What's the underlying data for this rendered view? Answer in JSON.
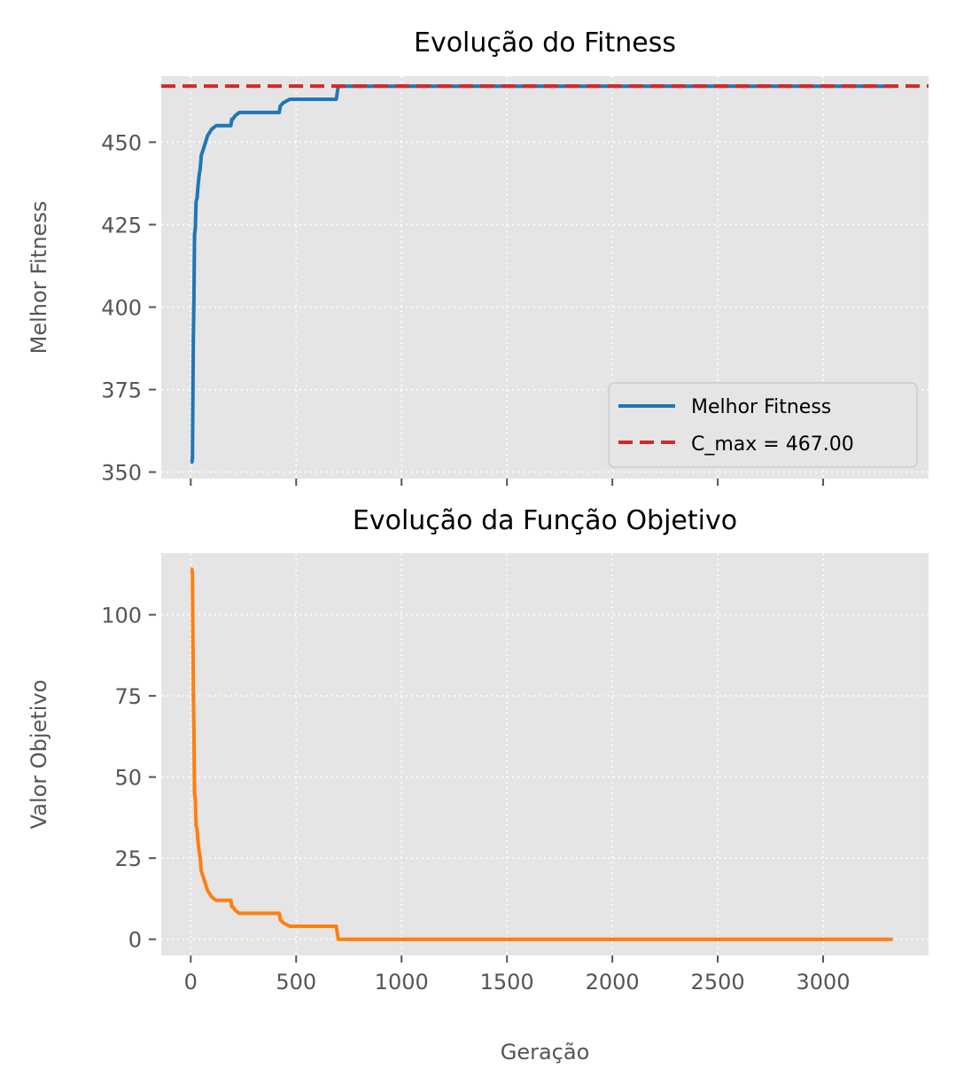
{
  "chart_data": [
    {
      "type": "line",
      "title": "Evolução do Fitness",
      "xlabel": "",
      "ylabel": "Melhor Fitness",
      "xlim": [
        -140,
        3500
      ],
      "ylim": [
        348,
        470
      ],
      "x_ticks": [
        0,
        500,
        1000,
        1500,
        2000,
        2500,
        3000
      ],
      "y_ticks": [
        350,
        375,
        400,
        425,
        450
      ],
      "y_tick_labels": [
        "350",
        "375",
        "400",
        "425",
        "450"
      ],
      "grid": true,
      "legend_position": "lower-right",
      "series": [
        {
          "name": "Melhor Fitness",
          "color": "#1f77b4",
          "style": "solid",
          "points": [
            [
              0,
              353
            ],
            [
              5,
              353
            ],
            [
              8,
              354
            ],
            [
              10,
              372
            ],
            [
              12,
              390
            ],
            [
              15,
              403
            ],
            [
              18,
              422
            ],
            [
              22,
              424
            ],
            [
              25,
              432
            ],
            [
              30,
              433
            ],
            [
              35,
              437
            ],
            [
              40,
              440
            ],
            [
              45,
              442
            ],
            [
              50,
              446
            ],
            [
              55,
              447
            ],
            [
              60,
              448
            ],
            [
              70,
              450
            ],
            [
              80,
              452
            ],
            [
              90,
              453
            ],
            [
              100,
              454
            ],
            [
              120,
              455
            ],
            [
              190,
              455
            ],
            [
              195,
              457
            ],
            [
              200,
              457
            ],
            [
              210,
              458
            ],
            [
              230,
              459
            ],
            [
              420,
              459
            ],
            [
              425,
              461
            ],
            [
              440,
              462
            ],
            [
              470,
              463
            ],
            [
              690,
              463
            ],
            [
              700,
              467
            ],
            [
              3330,
              467
            ]
          ]
        },
        {
          "name": "C_max = 467.00",
          "color": "#d62728",
          "style": "dashed",
          "hline": 467
        }
      ]
    },
    {
      "type": "line",
      "title": "Evolução da Função Objetivo",
      "xlabel": "Geração",
      "ylabel": "Valor Objetivo",
      "xlim": [
        -140,
        3500
      ],
      "ylim": [
        -5,
        119
      ],
      "x_ticks": [
        0,
        500,
        1000,
        1500,
        2000,
        2500,
        3000
      ],
      "x_tick_labels": [
        "0",
        "500",
        "1000",
        "1500",
        "2000",
        "2500",
        "3000"
      ],
      "y_ticks": [
        0,
        25,
        50,
        75,
        100
      ],
      "y_tick_labels": [
        "0",
        "25",
        "50",
        "75",
        "100"
      ],
      "grid": true,
      "series": [
        {
          "name": "",
          "color": "#ff7f0e",
          "style": "solid",
          "points": [
            [
              0,
              114
            ],
            [
              5,
              114
            ],
            [
              8,
              113
            ],
            [
              10,
              95
            ],
            [
              12,
              77
            ],
            [
              15,
              64
            ],
            [
              18,
              45
            ],
            [
              22,
              43
            ],
            [
              25,
              35
            ],
            [
              30,
              34
            ],
            [
              35,
              30
            ],
            [
              40,
              27
            ],
            [
              45,
              25
            ],
            [
              50,
              21
            ],
            [
              55,
              20
            ],
            [
              60,
              19
            ],
            [
              70,
              17
            ],
            [
              80,
              15
            ],
            [
              90,
              14
            ],
            [
              100,
              13
            ],
            [
              120,
              12
            ],
            [
              190,
              12
            ],
            [
              195,
              10
            ],
            [
              200,
              10
            ],
            [
              210,
              9
            ],
            [
              230,
              8
            ],
            [
              420,
              8
            ],
            [
              425,
              6
            ],
            [
              440,
              5
            ],
            [
              470,
              4
            ],
            [
              690,
              4
            ],
            [
              700,
              0
            ],
            [
              3330,
              0
            ]
          ]
        }
      ]
    }
  ]
}
